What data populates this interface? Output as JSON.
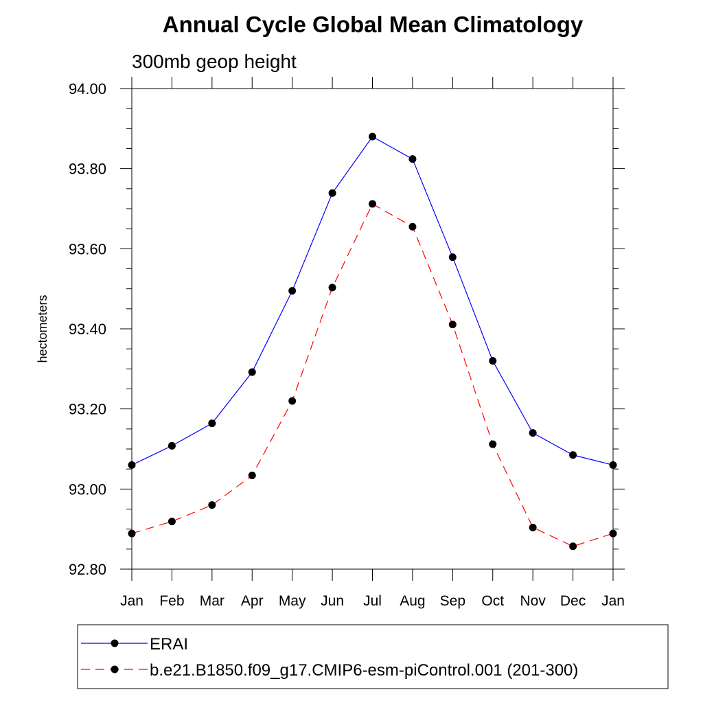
{
  "chart_data": {
    "type": "line",
    "title": "Annual Cycle Global Mean Climatology",
    "subtitle": "300mb geop height",
    "xlabel": "",
    "ylabel": "hectometers",
    "categories": [
      "Jan",
      "Feb",
      "Mar",
      "Apr",
      "May",
      "Jun",
      "Jul",
      "Aug",
      "Sep",
      "Oct",
      "Nov",
      "Dec",
      "Jan"
    ],
    "ylim": [
      92.8,
      94.0
    ],
    "yticks": [
      "92.80",
      "93.00",
      "93.20",
      "93.40",
      "93.60",
      "93.80",
      "94.00"
    ],
    "grid": false,
    "legend_position": "bottom",
    "series": [
      {
        "name": "ERAI",
        "color": "#0000ff",
        "dash": "solid",
        "marker": "filled-circle",
        "values": [
          93.06,
          93.108,
          93.164,
          93.292,
          93.495,
          93.739,
          93.88,
          93.824,
          93.579,
          93.32,
          93.14,
          93.085,
          93.06
        ]
      },
      {
        "name": "b.e21.B1850.f09_g17.CMIP6-esm-piControl.001 (201-300)",
        "color": "#ff0000",
        "dash": "dashed",
        "marker": "filled-circle",
        "values": [
          92.889,
          92.919,
          92.96,
          93.034,
          93.22,
          93.503,
          93.712,
          93.655,
          93.411,
          93.112,
          92.904,
          92.857,
          92.889
        ]
      }
    ]
  }
}
